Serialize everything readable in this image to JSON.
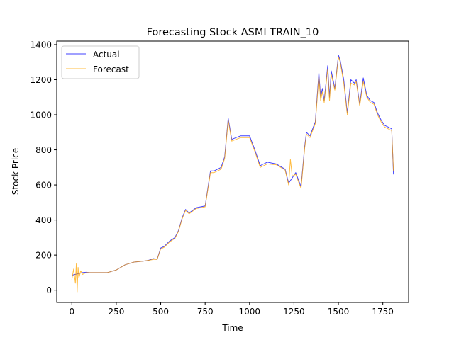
{
  "chart_data": {
    "type": "line",
    "title": "Forecasting Stock ASMI TRAIN_10",
    "xlabel": "Time",
    "ylabel": "Stock Price",
    "xlim": [
      -85,
      1895
    ],
    "ylim": [
      -70,
      1420
    ],
    "xticks": [
      0,
      250,
      500,
      750,
      1000,
      1250,
      1500,
      1750
    ],
    "yticks": [
      0,
      200,
      400,
      600,
      800,
      1000,
      1200,
      1400
    ],
    "grid": false,
    "legend": "top-left",
    "series": [
      {
        "name": "Actual",
        "color": "#0000ff",
        "x": [
          0,
          20,
          40,
          60,
          80,
          100,
          150,
          200,
          250,
          300,
          350,
          400,
          430,
          460,
          480,
          500,
          520,
          550,
          580,
          600,
          620,
          640,
          660,
          700,
          750,
          780,
          800,
          840,
          860,
          880,
          900,
          950,
          1000,
          1030,
          1060,
          1100,
          1150,
          1200,
          1220,
          1260,
          1290,
          1310,
          1320,
          1340,
          1370,
          1390,
          1400,
          1410,
          1420,
          1440,
          1450,
          1460,
          1480,
          1500,
          1510,
          1530,
          1550,
          1570,
          1590,
          1600,
          1620,
          1640,
          1660,
          1680,
          1700,
          1720,
          1740,
          1760,
          1780,
          1800,
          1810
        ],
        "y": [
          85,
          90,
          95,
          100,
          102,
          100,
          100,
          100,
          115,
          145,
          160,
          165,
          170,
          180,
          175,
          240,
          250,
          280,
          300,
          340,
          410,
          460,
          440,
          470,
          480,
          680,
          680,
          700,
          760,
          980,
          860,
          880,
          880,
          800,
          710,
          730,
          720,
          690,
          610,
          670,
          590,
          820,
          900,
          880,
          960,
          1240,
          1100,
          1150,
          1080,
          1280,
          1100,
          1250,
          1150,
          1340,
          1310,
          1200,
          1010,
          1200,
          1180,
          1200,
          1060,
          1210,
          1110,
          1080,
          1070,
          1010,
          970,
          940,
          930,
          920,
          660
        ]
      },
      {
        "name": "Forecast",
        "color": "#ffa500",
        "x": [
          0,
          10,
          20,
          25,
          30,
          35,
          40,
          50,
          60,
          80,
          100,
          150,
          200,
          250,
          300,
          350,
          400,
          430,
          460,
          480,
          500,
          520,
          550,
          580,
          600,
          620,
          640,
          660,
          700,
          750,
          780,
          800,
          840,
          860,
          880,
          900,
          950,
          1000,
          1030,
          1060,
          1100,
          1150,
          1200,
          1220,
          1230,
          1240,
          1260,
          1290,
          1310,
          1320,
          1340,
          1370,
          1390,
          1400,
          1410,
          1420,
          1440,
          1450,
          1460,
          1480,
          1500,
          1510,
          1530,
          1550,
          1570,
          1590,
          1600,
          1620,
          1640,
          1660,
          1680,
          1700,
          1720,
          1740,
          1760,
          1780,
          1800,
          1810
        ],
        "y": [
          60,
          120,
          40,
          150,
          -10,
          130,
          70,
          110,
          90,
          100,
          100,
          100,
          100,
          115,
          145,
          160,
          165,
          170,
          175,
          175,
          235,
          245,
          275,
          295,
          335,
          405,
          455,
          435,
          465,
          475,
          670,
          670,
          690,
          750,
          970,
          850,
          870,
          870,
          790,
          700,
          720,
          715,
          685,
          600,
          745,
          650,
          660,
          580,
          810,
          890,
          870,
          950,
          1220,
          1080,
          1130,
          1070,
          1260,
          1080,
          1230,
          1140,
          1330,
          1300,
          1180,
          1000,
          1180,
          1170,
          1190,
          1050,
          1190,
          1100,
          1070,
          1060,
          1000,
          960,
          930,
          920,
          910,
          680
        ]
      }
    ]
  }
}
